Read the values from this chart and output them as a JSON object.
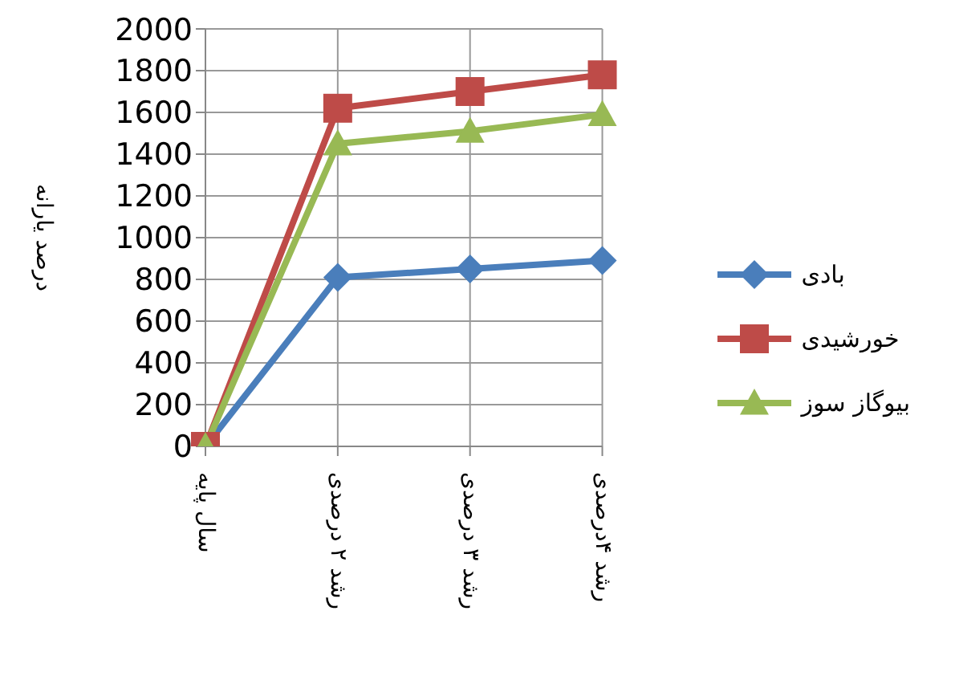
{
  "chart_data": {
    "type": "line",
    "ylabel": "درصد یارانه",
    "categories": [
      "سال پایه",
      "رشد ۲ درصدی",
      "رشد ۳ درصدی",
      "رشد ۴درصدی"
    ],
    "series": [
      {
        "name": "بادی",
        "color": "#4a7ebb",
        "marker": "diamond",
        "values": [
          0,
          810,
          850,
          890
        ]
      },
      {
        "name": "خورشیدی",
        "color": "#be4b48",
        "marker": "square",
        "values": [
          0,
          1620,
          1700,
          1780
        ]
      },
      {
        "name": "بیوگاز سوز",
        "color": "#98b954",
        "marker": "triangle",
        "values": [
          0,
          1450,
          1510,
          1590
        ]
      }
    ],
    "ylim": [
      0,
      2000
    ],
    "yticks": [
      0,
      200,
      400,
      600,
      800,
      1000,
      1200,
      1400,
      1600,
      1800,
      2000
    ],
    "grid": true,
    "legend": "right",
    "line_style": "solid"
  }
}
